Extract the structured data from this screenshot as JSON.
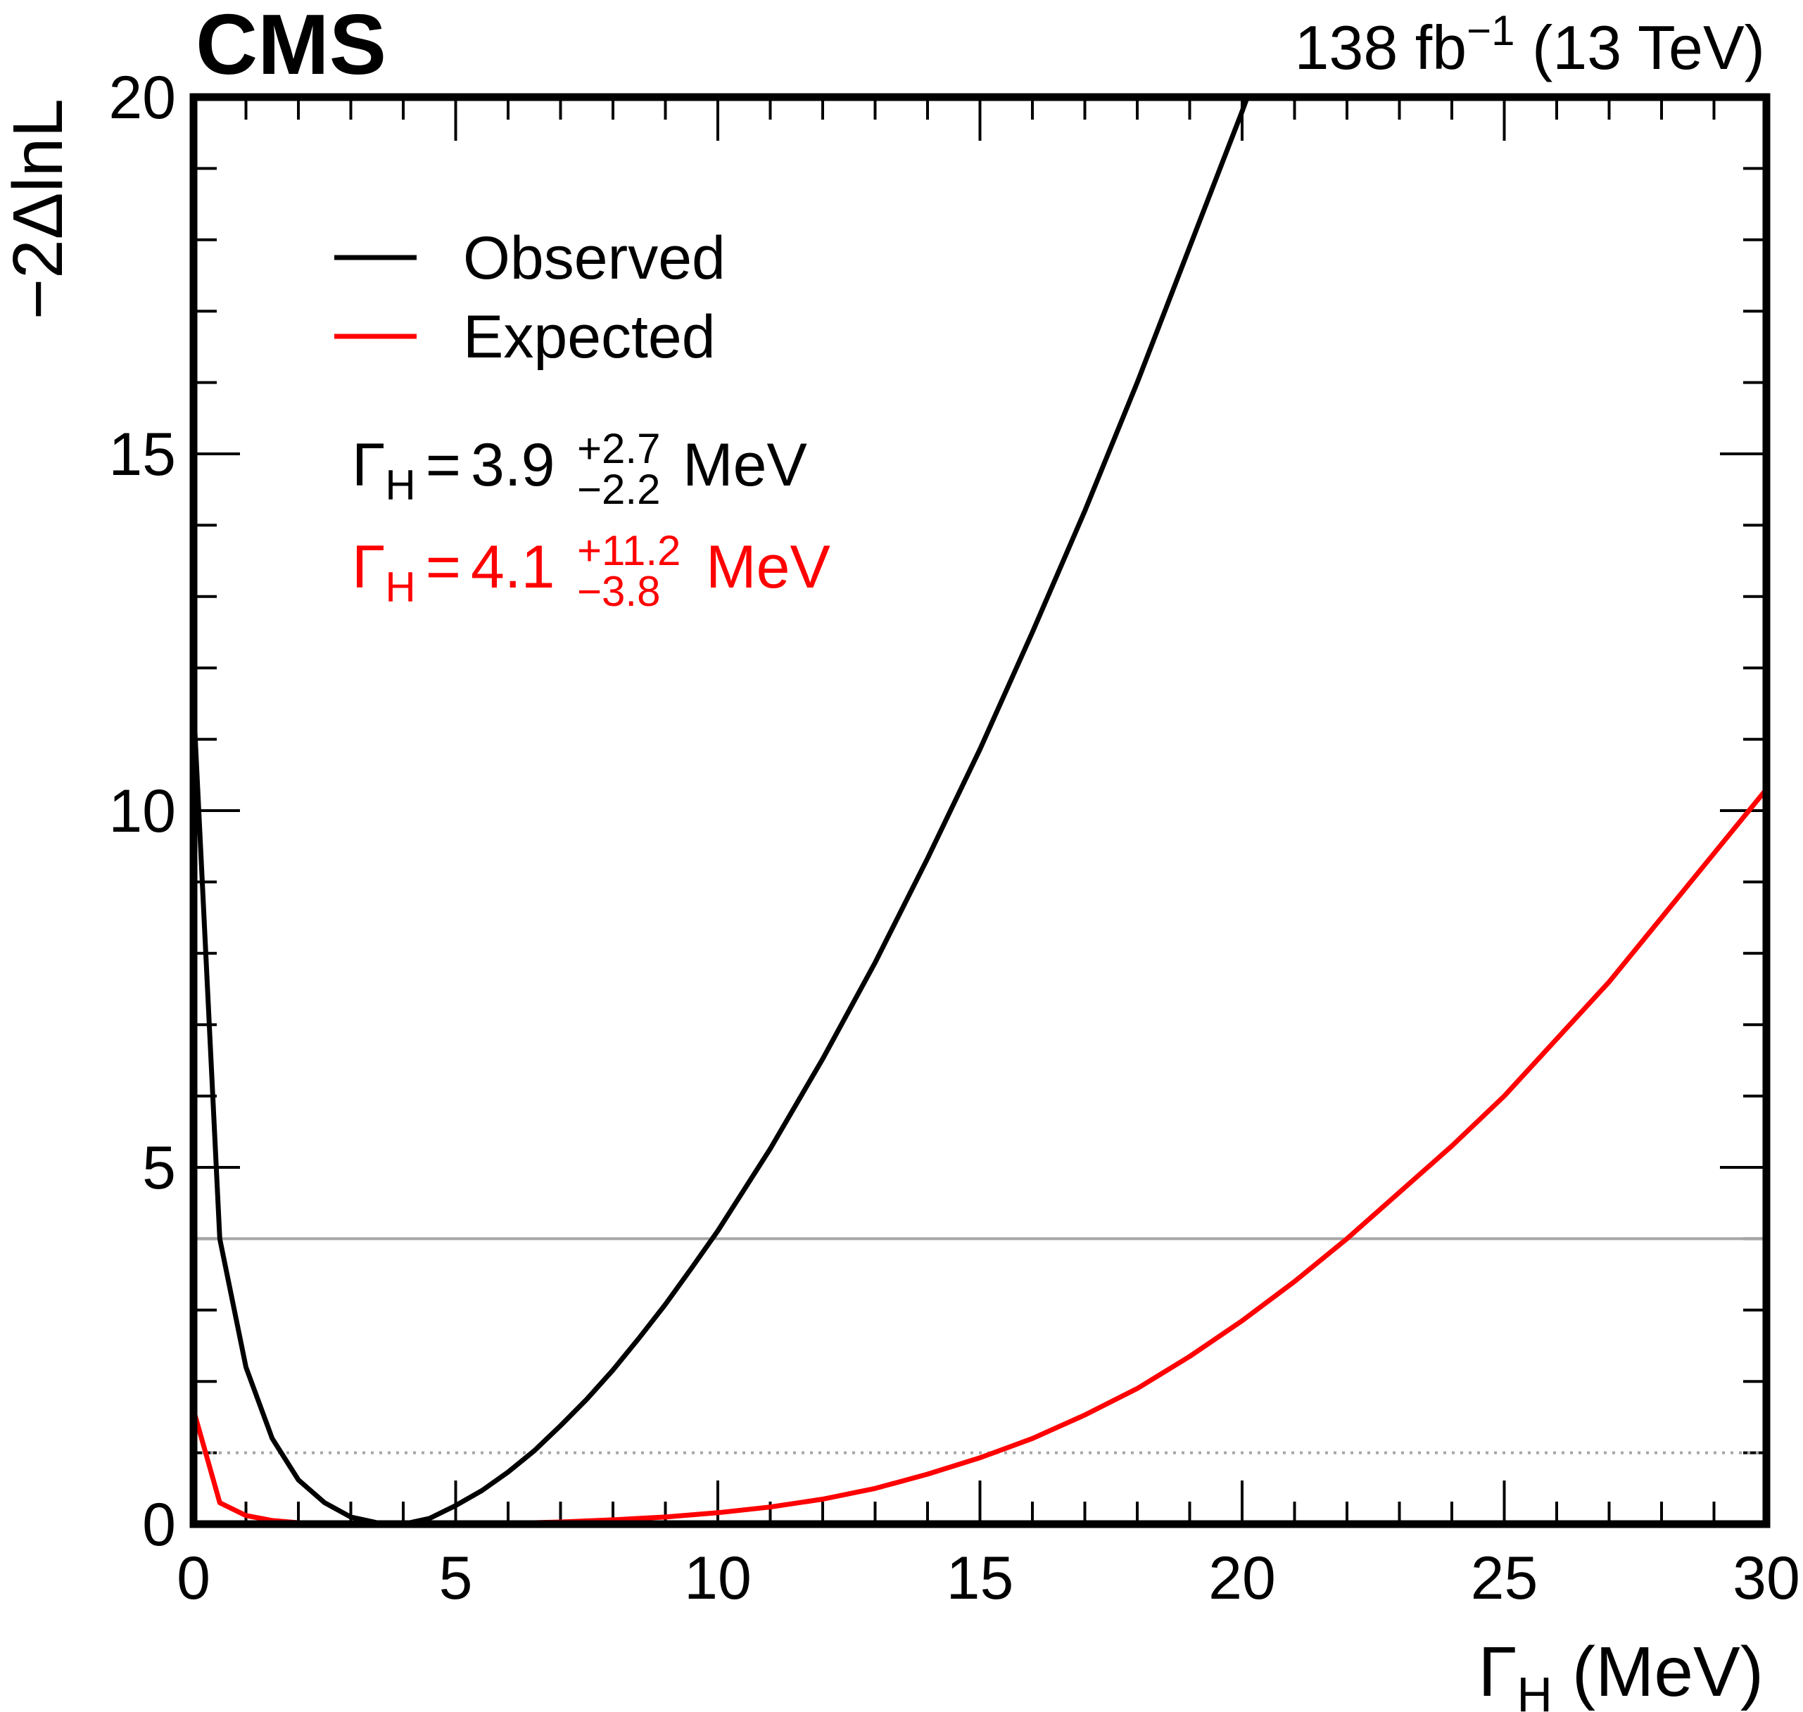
{
  "header": {
    "experiment": "CMS",
    "lumi": "138 fb",
    "lumi_exp": "−1",
    "energy": "(13 TeV)"
  },
  "chart_data": {
    "type": "line",
    "xlabel": "Γ",
    "xlabel_sub": "H",
    "xlabel_unit": "(MeV)",
    "ylabel": "−2ΔlnL",
    "xlim": [
      0,
      30
    ],
    "ylim": [
      0,
      20
    ],
    "x_ticks": [
      0,
      5,
      10,
      15,
      20,
      25,
      30
    ],
    "y_ticks": [
      0,
      5,
      10,
      15,
      20
    ],
    "grid": false,
    "legend_position": "top-left",
    "reference_lines": [
      {
        "y": 4,
        "style": "solid",
        "color": "#a6a6a6"
      },
      {
        "y": 1,
        "style": "dotted",
        "color": "#a6a6a6"
      }
    ],
    "series": [
      {
        "name": "Observed",
        "color": "#000000",
        "x": [
          0,
          0.5,
          1,
          1.5,
          2,
          2.5,
          3,
          3.5,
          4,
          4.5,
          5,
          5.5,
          6,
          6.5,
          7,
          7.5,
          8,
          8.5,
          9,
          9.5,
          10,
          11,
          12,
          13,
          14,
          15,
          16,
          17,
          18,
          19,
          20,
          20.5
        ],
        "y": [
          11.5,
          4.0,
          2.2,
          1.2,
          0.62,
          0.3,
          0.1,
          0.02,
          0,
          0.08,
          0.26,
          0.47,
          0.73,
          1.03,
          1.38,
          1.75,
          2.16,
          2.61,
          3.08,
          3.59,
          4.11,
          5.26,
          6.52,
          7.87,
          9.33,
          10.86,
          12.5,
          14.2,
          16.0,
          17.9,
          19.8,
          20.8
        ]
      },
      {
        "name": "Expected",
        "color": "#ff0000",
        "x": [
          0,
          0.5,
          1,
          1.5,
          2,
          3,
          4,
          5,
          6,
          7,
          8,
          9,
          10,
          11,
          12,
          13,
          14,
          15,
          16,
          17,
          18,
          19,
          20,
          21,
          22,
          23,
          24,
          25,
          26,
          27,
          28,
          29,
          30
        ],
        "y": [
          1.6,
          0.3,
          0.12,
          0.05,
          0.02,
          0,
          0,
          0.003,
          0.01,
          0.03,
          0.06,
          0.1,
          0.16,
          0.24,
          0.35,
          0.5,
          0.7,
          0.93,
          1.2,
          1.53,
          1.9,
          2.35,
          2.85,
          3.4,
          4.0,
          4.65,
          5.3,
          6.0,
          6.8,
          7.6,
          8.5,
          9.4,
          10.3
        ]
      }
    ],
    "annotations": [
      {
        "symbol": "Γ",
        "sub": "H",
        "eq": "=",
        "value": "3.9",
        "up": "+2.7",
        "down": "−2.2",
        "unit": "MeV",
        "color": "#000000"
      },
      {
        "symbol": "Γ",
        "sub": "H",
        "eq": "=",
        "value": "4.1",
        "up": "+11.2",
        "down": "−3.8",
        "unit": "MeV",
        "color": "#ff0000"
      }
    ]
  }
}
